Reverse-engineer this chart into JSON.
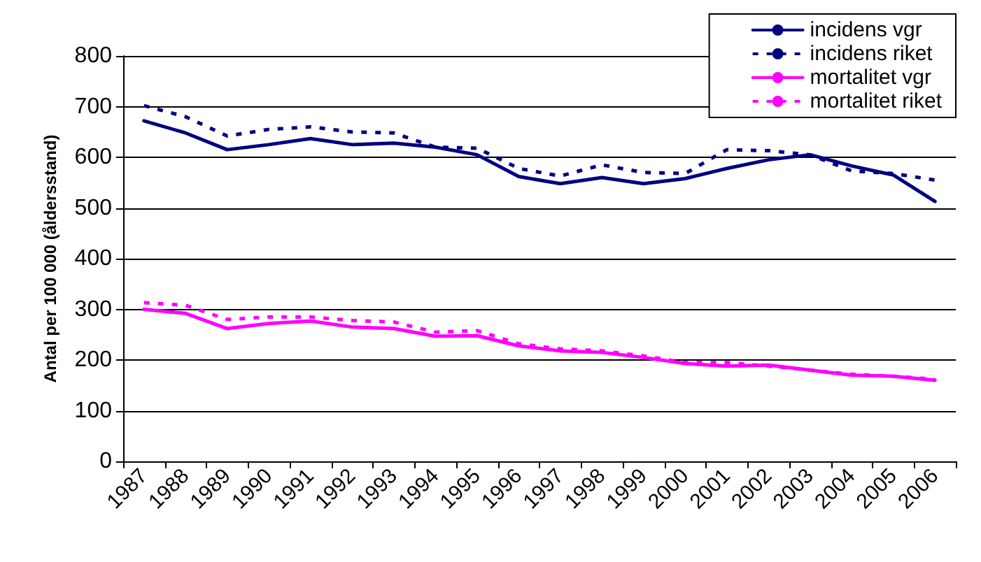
{
  "chart_data": {
    "type": "line",
    "ylabel": "Antal per 100 000 (åldersstand)",
    "categories": [
      "1987",
      "1988",
      "1989",
      "1990",
      "1991",
      "1992",
      "1993",
      "1994",
      "1995",
      "1996",
      "1997",
      "1998",
      "1999",
      "2000",
      "2001",
      "2002",
      "2003",
      "2004",
      "2005",
      "2006"
    ],
    "series": [
      {
        "name": "incidens vgr",
        "color": "#000080",
        "line_style": "solid",
        "values": [
          672,
          648,
          615,
          625,
          637,
          625,
          628,
          620,
          605,
          562,
          548,
          560,
          548,
          558,
          578,
          595,
          605,
          583,
          565,
          513
        ]
      },
      {
        "name": "incidens riket",
        "color": "#000080",
        "line_style": "dashed",
        "values": [
          702,
          680,
          642,
          655,
          660,
          650,
          648,
          620,
          618,
          578,
          563,
          585,
          570,
          568,
          615,
          613,
          605,
          573,
          568,
          555
        ]
      },
      {
        "name": "mortalitet vgr",
        "color": "#ff00ff",
        "line_style": "solid",
        "values": [
          300,
          292,
          262,
          272,
          277,
          265,
          262,
          247,
          248,
          228,
          218,
          215,
          205,
          193,
          188,
          190,
          180,
          170,
          168,
          160
        ]
      },
      {
        "name": "mortalitet riket",
        "color": "#ff00ff",
        "line_style": "dashed",
        "values": [
          313,
          308,
          280,
          285,
          285,
          278,
          275,
          255,
          258,
          232,
          222,
          218,
          208,
          195,
          195,
          188,
          180,
          172,
          168,
          162
        ]
      }
    ],
    "ylim": [
      0,
      800
    ],
    "yticks": [
      0,
      100,
      200,
      300,
      400,
      500,
      600,
      700,
      800
    ],
    "grid": "y",
    "legend": "top right",
    "marker": "none"
  }
}
